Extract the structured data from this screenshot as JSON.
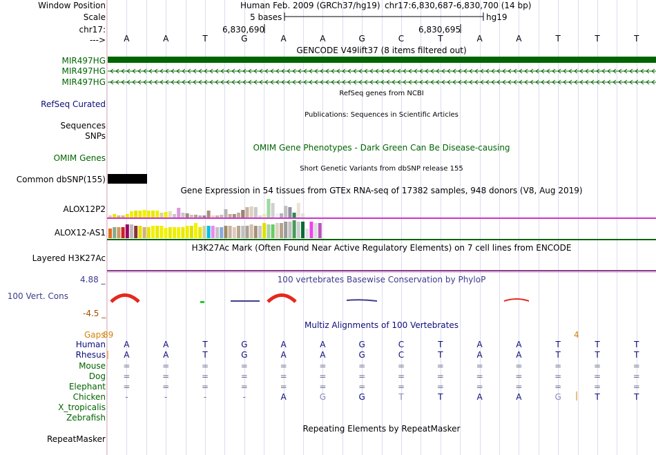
{
  "position": {
    "label": "Window Position",
    "assembly": "Human Feb. 2009 (GRCh37/hg19)",
    "range": "chr17:6,830,687-6,830,700 (14 bp)"
  },
  "scale": {
    "label": "Scale",
    "size": "5 bases",
    "db": "hg19"
  },
  "chrom": {
    "label": "chr17:",
    "tick1": "6,830,690",
    "tick2": "6,830,695"
  },
  "strand_label": "--->",
  "sequence": [
    "A",
    "A",
    "T",
    "G",
    "A",
    "A",
    "G",
    "C",
    "T",
    "A",
    "A",
    "T",
    "T",
    "T"
  ],
  "gencode": {
    "title": "GENCODE V49lift37 (8 items filtered out)",
    "items": [
      "MIR497HG",
      "MIR497HG",
      "MIR497HG"
    ],
    "color": "#006400"
  },
  "refseq": {
    "title": "RefSeq genes from NCBI",
    "label": "RefSeq Curated",
    "color": "#0c0c78"
  },
  "publications": {
    "title": "Publications: Sequences in Scientific Articles",
    "labels": [
      "Sequences",
      "SNPs"
    ]
  },
  "omim": {
    "title": "OMIM Gene Phenotypes - Dark Green Can Be Disease-causing",
    "label": "OMIM Genes",
    "color": "#006400"
  },
  "dbsnp": {
    "title": "Short Genetic Variants from dbSNP release 155",
    "label": "Common dbSNP(155)"
  },
  "gtex": {
    "title": "Gene Expression in 54 tissues from GTEx RNA-seq of 17382 samples, 948 donors (V8, Aug 2019)",
    "genes": [
      "ALOX12P2",
      "ALOX12-AS1"
    ]
  },
  "h3k27ac": {
    "title": "H3K27Ac Mark (Often Found Near Active Regulatory Elements) on 7 cell lines from ENCODE",
    "label": "Layered H3K27Ac"
  },
  "phylop": {
    "title": "100 vertebrates Basewise Conservation by PhyloP",
    "max": "4.88 _",
    "min": "-4.5 _",
    "label": "100 Vert. Cons",
    "color": "#3c3c8c"
  },
  "multiz": {
    "title": "Multiz Alignments of 100 Vertebrates",
    "gaps_label": "Gaps",
    "gap_left": "89",
    "gap_right": "4",
    "species": [
      {
        "name": "Human",
        "bases": [
          "A",
          "A",
          "T",
          "G",
          "A",
          "A",
          "G",
          "C",
          "T",
          "A",
          "A",
          "T",
          "T",
          "T"
        ]
      },
      {
        "name": "Rhesus",
        "bases": [
          "A",
          "A",
          "T",
          "G",
          "A",
          "A",
          "G",
          "C",
          "T",
          "A",
          "A",
          "T",
          "T",
          "T"
        ]
      },
      {
        "name": "Mouse",
        "bases": [
          "=",
          "=",
          "=",
          "=",
          "=",
          "=",
          "=",
          "=",
          "=",
          "=",
          "=",
          "=",
          "=",
          "="
        ]
      },
      {
        "name": "Dog",
        "bases": [
          "=",
          "=",
          "=",
          "=",
          "=",
          "=",
          "=",
          "=",
          "=",
          "=",
          "=",
          "=",
          "=",
          "="
        ]
      },
      {
        "name": "Elephant",
        "bases": [
          "=",
          "=",
          "=",
          "=",
          "=",
          "=",
          "=",
          "=",
          "=",
          "=",
          "=",
          "=",
          "=",
          "="
        ]
      },
      {
        "name": "Chicken",
        "bases": [
          "-",
          "-",
          "-",
          "-",
          "A",
          "G",
          "G",
          "T",
          "T",
          "A",
          "A",
          "G",
          "T",
          "T"
        ]
      },
      {
        "name": "X_tropicalis",
        "bases": []
      },
      {
        "name": "Zebrafish",
        "bases": []
      }
    ]
  },
  "repeatmasker": {
    "title": "Repeating Elements by RepeatMasker",
    "label": "RepeatMasker"
  },
  "colors": {
    "gene_green": "#006400",
    "navy": "#0c0c78",
    "gaps_orange": "#d2820a",
    "magenta": "#cc33cc",
    "phylop_red": "#e6281e"
  }
}
